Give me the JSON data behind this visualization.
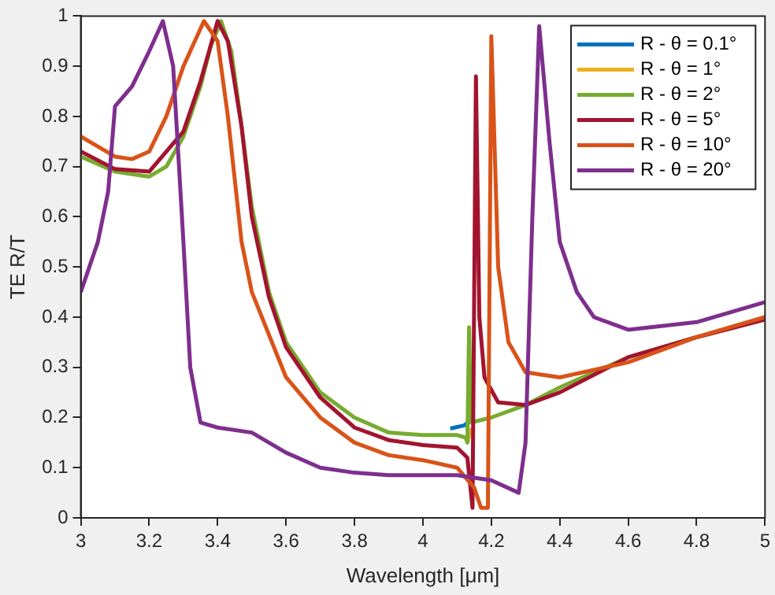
{
  "chart_data": {
    "type": "line",
    "xlabel": "Wavelength [μm]",
    "ylabel": "TE R/T",
    "xlim": [
      3,
      5
    ],
    "xticks": [
      3,
      3.2,
      3.4,
      3.6,
      3.8,
      4,
      4.2,
      4.4,
      4.6,
      4.8,
      5
    ],
    "ylim": [
      0,
      1
    ],
    "yticks": [
      0,
      0.1,
      0.2,
      0.3,
      0.4,
      0.5,
      0.6,
      0.7,
      0.8,
      0.9,
      1
    ],
    "grid": false,
    "legend": "top right",
    "marker": "none",
    "line_style": "solid",
    "series": [
      {
        "name": "R - θ = 0.1°",
        "color": "#0072bd",
        "x": [
          4.08,
          4.12,
          4.132
        ],
        "values": [
          0.178,
          0.184,
          0.19
        ]
      },
      {
        "name": "R - θ = 1°",
        "color": "#edb120",
        "x": [
          4.13,
          4.14,
          4.15
        ],
        "values": [
          0.15,
          0.175,
          0.18
        ]
      },
      {
        "name": "R - θ = 2°",
        "color": "#77ac30",
        "x": [
          3,
          3.1,
          3.2,
          3.25,
          3.3,
          3.35,
          3.38,
          3.41,
          3.44,
          3.47,
          3.5,
          3.55,
          3.6,
          3.7,
          3.8,
          3.9,
          4,
          4.1,
          4.125,
          4.13,
          4.135,
          4.14,
          4.2,
          4.3,
          4.4,
          4.6,
          4.8,
          5
        ],
        "values": [
          0.72,
          0.69,
          0.68,
          0.7,
          0.76,
          0.86,
          0.94,
          0.99,
          0.93,
          0.78,
          0.62,
          0.45,
          0.35,
          0.25,
          0.2,
          0.17,
          0.165,
          0.165,
          0.16,
          0.15,
          0.38,
          0.19,
          0.2,
          0.225,
          0.26,
          0.32,
          0.36,
          0.4
        ]
      },
      {
        "name": "R - θ = 5°",
        "color": "#a2142f",
        "x": [
          3,
          3.1,
          3.2,
          3.3,
          3.35,
          3.4,
          3.43,
          3.47,
          3.5,
          3.55,
          3.6,
          3.7,
          3.8,
          3.9,
          4,
          4.1,
          4.13,
          4.145,
          4.155,
          4.165,
          4.18,
          4.22,
          4.3,
          4.4,
          4.6,
          4.8,
          5
        ],
        "values": [
          0.73,
          0.695,
          0.69,
          0.77,
          0.87,
          0.99,
          0.95,
          0.78,
          0.6,
          0.44,
          0.34,
          0.24,
          0.18,
          0.155,
          0.145,
          0.14,
          0.12,
          0.02,
          0.88,
          0.4,
          0.28,
          0.23,
          0.225,
          0.25,
          0.32,
          0.36,
          0.395
        ]
      },
      {
        "name": "R - θ = 10°",
        "color": "#d95319",
        "x": [
          3,
          3.1,
          3.15,
          3.2,
          3.25,
          3.3,
          3.36,
          3.4,
          3.43,
          3.47,
          3.5,
          3.6,
          3.7,
          3.8,
          3.9,
          4,
          4.1,
          4.15,
          4.17,
          4.19,
          4.2,
          4.22,
          4.25,
          4.3,
          4.4,
          4.6,
          4.8,
          5
        ],
        "values": [
          0.76,
          0.72,
          0.715,
          0.73,
          0.8,
          0.9,
          0.99,
          0.95,
          0.8,
          0.55,
          0.45,
          0.28,
          0.2,
          0.15,
          0.125,
          0.115,
          0.1,
          0.06,
          0.02,
          0.02,
          0.96,
          0.5,
          0.35,
          0.29,
          0.28,
          0.31,
          0.36,
          0.4
        ]
      },
      {
        "name": "R - θ = 20°",
        "color": "#7e2f8e",
        "x": [
          3,
          3.05,
          3.08,
          3.1,
          3.15,
          3.2,
          3.24,
          3.27,
          3.3,
          3.32,
          3.35,
          3.4,
          3.5,
          3.6,
          3.7,
          3.8,
          3.9,
          4,
          4.1,
          4.2,
          4.28,
          4.3,
          4.32,
          4.34,
          4.37,
          4.4,
          4.45,
          4.5,
          4.6,
          4.8,
          5
        ],
        "values": [
          0.45,
          0.55,
          0.65,
          0.82,
          0.86,
          0.93,
          0.99,
          0.9,
          0.55,
          0.3,
          0.19,
          0.18,
          0.17,
          0.13,
          0.1,
          0.09,
          0.085,
          0.085,
          0.085,
          0.075,
          0.05,
          0.15,
          0.6,
          0.98,
          0.75,
          0.55,
          0.45,
          0.4,
          0.375,
          0.39,
          0.43
        ]
      }
    ]
  }
}
